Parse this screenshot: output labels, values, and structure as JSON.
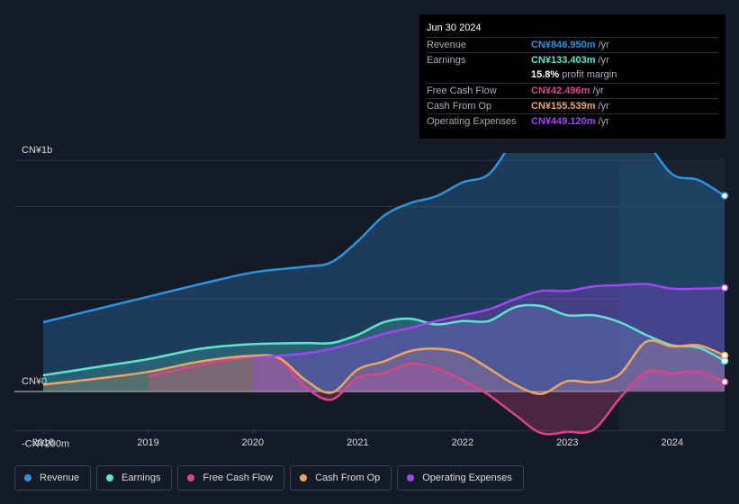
{
  "tooltip": {
    "date": "Jun 30 2024",
    "rows": [
      {
        "label": "Revenue",
        "value": "CN¥846.950m",
        "unit": "/yr",
        "color": "#2e93e0"
      },
      {
        "label": "Earnings",
        "value": "CN¥133.403m",
        "unit": "/yr",
        "color": "#5fe3d0"
      },
      {
        "label": "",
        "value": "15.8%",
        "unit": "profit margin",
        "color": "#ffffff"
      },
      {
        "label": "Free Cash Flow",
        "value": "CN¥42.496m",
        "unit": "/yr",
        "color": "#d9458a"
      },
      {
        "label": "Cash From Op",
        "value": "CN¥155.539m",
        "unit": "/yr",
        "color": "#e9a664"
      },
      {
        "label": "Operating Expenses",
        "value": "CN¥449.120m",
        "unit": "/yr",
        "color": "#a146f0"
      }
    ]
  },
  "legend": [
    {
      "label": "Revenue",
      "color": "#2e93e0"
    },
    {
      "label": "Earnings",
      "color": "#5fe3d0"
    },
    {
      "label": "Free Cash Flow",
      "color": "#d9458a"
    },
    {
      "label": "Cash From Op",
      "color": "#e9a664"
    },
    {
      "label": "Operating Expenses",
      "color": "#a146f0"
    }
  ],
  "chart_data": {
    "type": "area",
    "y_tick_labels": [
      "CN¥1b",
      "CN¥0",
      "-CN¥200m"
    ],
    "ylim": [
      -200,
      1200
    ],
    "x_tick_labels": [
      "2018",
      "2019",
      "2020",
      "2021",
      "2022",
      "2023",
      "2024"
    ],
    "xlim": [
      2018.0,
      2024.5
    ],
    "series": [
      {
        "name": "Revenue",
        "color": "#2e93e0",
        "x": [
          2018.0,
          2018.5,
          2019.0,
          2019.5,
          2020.0,
          2020.5,
          2020.75,
          2021.0,
          2021.25,
          2021.5,
          2021.75,
          2022.0,
          2022.25,
          2022.5,
          2022.75,
          2023.0,
          2023.25,
          2023.5,
          2023.75,
          2024.0,
          2024.25,
          2024.5
        ],
        "y": [
          300,
          355,
          410,
          465,
          515,
          540,
          560,
          650,
          760,
          815,
          845,
          905,
          940,
          1090,
          1150,
          1145,
          1175,
          1155,
          1080,
          940,
          915,
          847
        ]
      },
      {
        "name": "Earnings",
        "color": "#5fe3d0",
        "x": [
          2018.0,
          2018.5,
          2019.0,
          2019.5,
          2020.0,
          2020.5,
          2020.75,
          2021.0,
          2021.25,
          2021.5,
          2021.75,
          2022.0,
          2022.25,
          2022.5,
          2022.75,
          2023.0,
          2023.25,
          2023.5,
          2023.75,
          2024.0,
          2024.25,
          2024.5
        ],
        "y": [
          70,
          105,
          140,
          185,
          205,
          210,
          210,
          245,
          300,
          315,
          290,
          305,
          305,
          365,
          370,
          330,
          330,
          300,
          245,
          200,
          190,
          133
        ]
      },
      {
        "name": "Free Cash Flow",
        "color": "#d9458a",
        "x": [
          2019.0,
          2019.5,
          2020.0,
          2020.25,
          2020.5,
          2020.75,
          2021.0,
          2021.25,
          2021.5,
          2021.75,
          2022.0,
          2022.25,
          2022.5,
          2022.75,
          2023.0,
          2023.25,
          2023.5,
          2023.75,
          2024.0,
          2024.25,
          2024.5
        ],
        "y": [
          65,
          115,
          150,
          140,
          20,
          -35,
          60,
          80,
          120,
          100,
          50,
          -15,
          -100,
          -180,
          -175,
          -165,
          -30,
          85,
          80,
          85,
          42
        ]
      },
      {
        "name": "Cash From Op",
        "color": "#e9a664",
        "x": [
          2018.0,
          2018.5,
          2019.0,
          2019.5,
          2020.0,
          2020.25,
          2020.5,
          2020.75,
          2021.0,
          2021.25,
          2021.5,
          2021.75,
          2022.0,
          2022.25,
          2022.5,
          2022.75,
          2023.0,
          2023.25,
          2023.5,
          2023.75,
          2024.0,
          2024.25,
          2024.5
        ],
        "y": [
          30,
          55,
          85,
          130,
          155,
          145,
          50,
          -5,
          95,
          130,
          175,
          185,
          165,
          100,
          30,
          -10,
          45,
          40,
          75,
          215,
          195,
          200,
          156
        ]
      },
      {
        "name": "Operating Expenses",
        "color": "#a146f0",
        "x": [
          2020.0,
          2020.5,
          2020.75,
          2021.0,
          2021.25,
          2021.5,
          2021.75,
          2022.0,
          2022.25,
          2022.5,
          2022.75,
          2023.0,
          2023.25,
          2023.5,
          2023.75,
          2024.0,
          2024.25,
          2024.5
        ],
        "y": [
          145,
          165,
          185,
          215,
          250,
          275,
          305,
          330,
          355,
          400,
          435,
          435,
          455,
          460,
          465,
          445,
          445,
          449
        ]
      }
    ]
  }
}
